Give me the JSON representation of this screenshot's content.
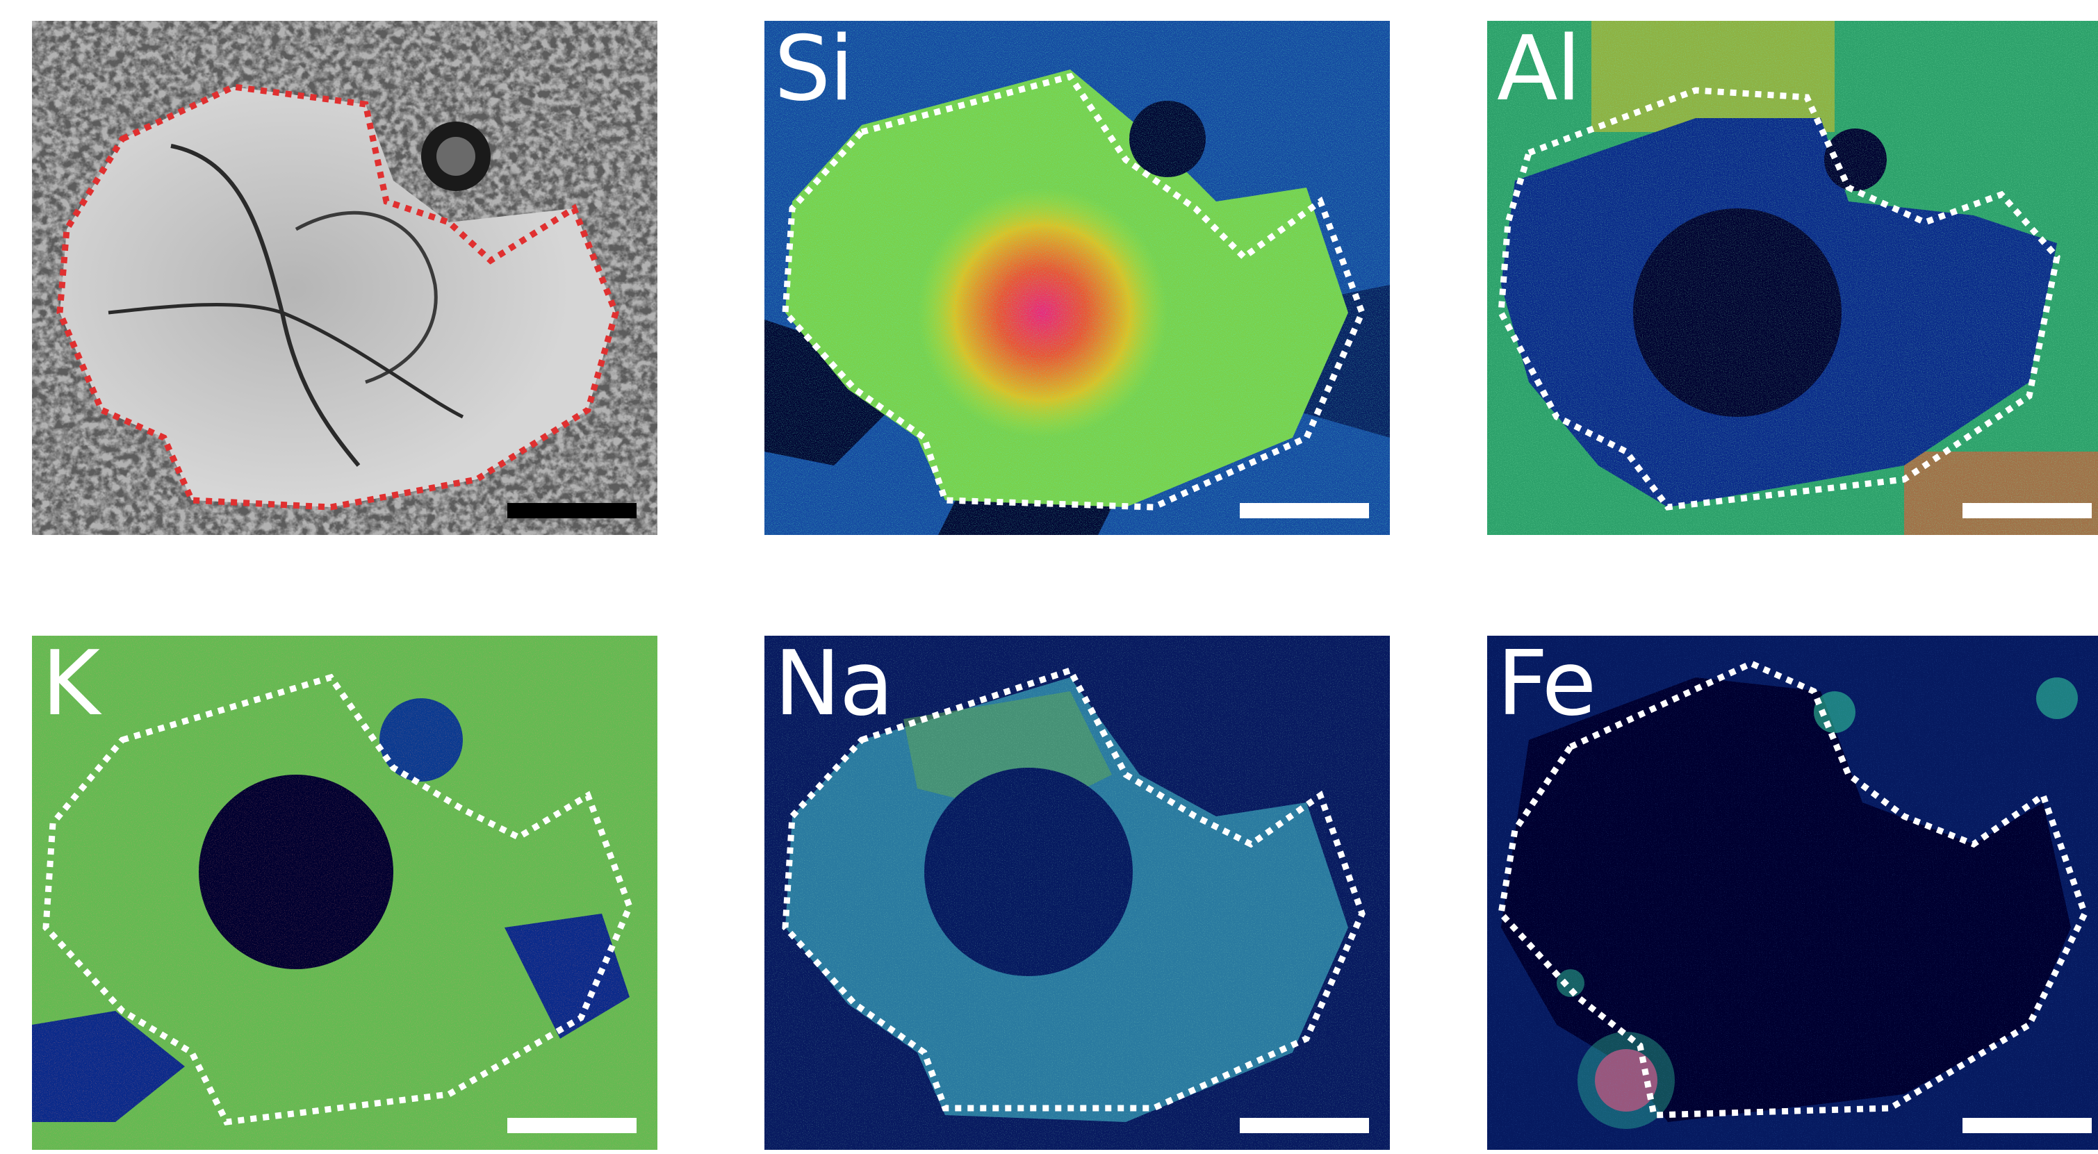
{
  "figure": {
    "panels": [
      {
        "id": "sem",
        "label": "",
        "scale_bar_color": "#000000",
        "outline_color": "#e03030",
        "kind": "grayscale"
      },
      {
        "id": "si",
        "label": "Si",
        "scale_bar_color": "#ffffff",
        "outline_color": "#ffffff",
        "kind": "map",
        "level": "high"
      },
      {
        "id": "al",
        "label": "Al",
        "scale_bar_color": "#ffffff",
        "outline_color": "#ffffff",
        "kind": "map",
        "level": "low-inside"
      },
      {
        "id": "k",
        "label": "K",
        "scale_bar_color": "#ffffff",
        "outline_color": "#ffffff",
        "kind": "map",
        "level": "medium"
      },
      {
        "id": "na",
        "label": "Na",
        "scale_bar_color": "#ffffff",
        "outline_color": "#ffffff",
        "kind": "map",
        "level": "medium-low"
      },
      {
        "id": "fe",
        "label": "Fe",
        "scale_bar_color": "#ffffff",
        "outline_color": "#ffffff",
        "kind": "map",
        "level": "very-low"
      }
    ],
    "colormap": [
      "#000030",
      "#0a2a8a",
      "#1a78c8",
      "#2ec49a",
      "#9be23a",
      "#f0d020",
      "#f06020",
      "#e0106a"
    ]
  }
}
